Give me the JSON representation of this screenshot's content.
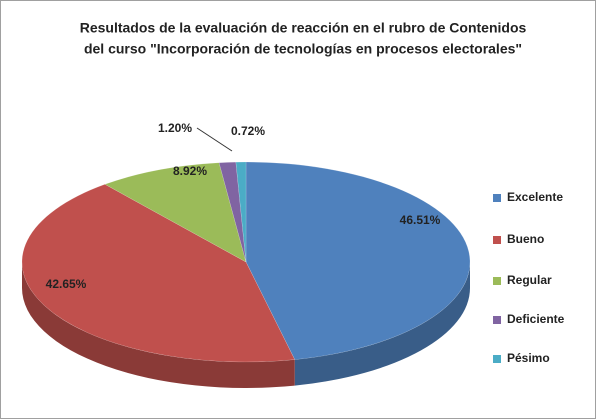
{
  "chart_data": {
    "type": "pie",
    "title": [
      "Resultados de la evaluación de reacción en el rubro de Contenidos",
      "del curso \"Incorporación de tecnologías en procesos electorales\""
    ],
    "categories": [
      "Excelente",
      "Bueno",
      "Regular",
      "Deficiente",
      "Pésimo"
    ],
    "values": [
      46.51,
      42.65,
      8.92,
      1.2,
      0.72
    ],
    "value_labels": [
      "46.51%",
      "42.65%",
      "8.92%",
      "1.20%",
      "0.72%"
    ],
    "colors": [
      "#4f81bd",
      "#c0504d",
      "#9bbb59",
      "#8064a2",
      "#4bacc6"
    ],
    "legend": "right"
  }
}
